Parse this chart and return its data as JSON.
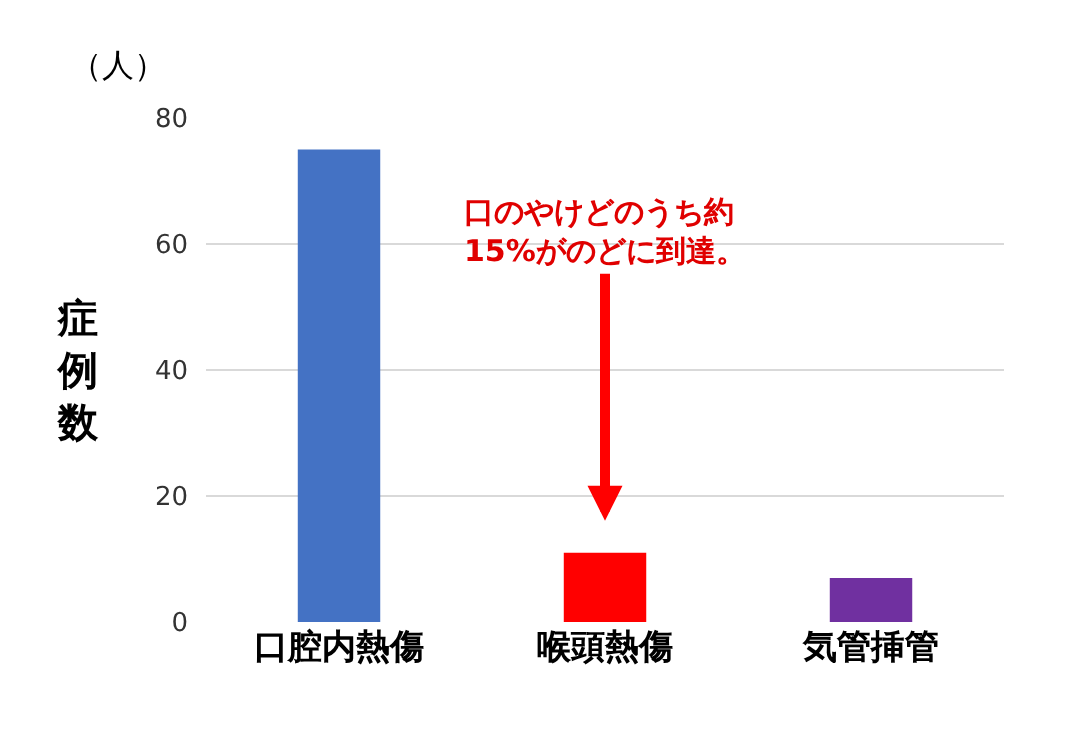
{
  "chart_data": {
    "type": "bar",
    "ylabel": "症例数",
    "categories": [
      "口腔内熱傷",
      "喉頭熱傷",
      "気管挿管"
    ],
    "values": [
      75,
      11,
      7
    ],
    "colors": [
      "#4472c4",
      "#ff0000",
      "#7030a0"
    ],
    "ylim": [
      0,
      80
    ],
    "yticks": [
      0,
      20,
      40,
      60,
      80
    ],
    "grid": "y",
    "annotations": [
      "（人）",
      {
        "text": "口のやけどのうち約15%がのどに到達。",
        "x": "喉頭熱傷",
        "y": 11
      }
    ]
  }
}
